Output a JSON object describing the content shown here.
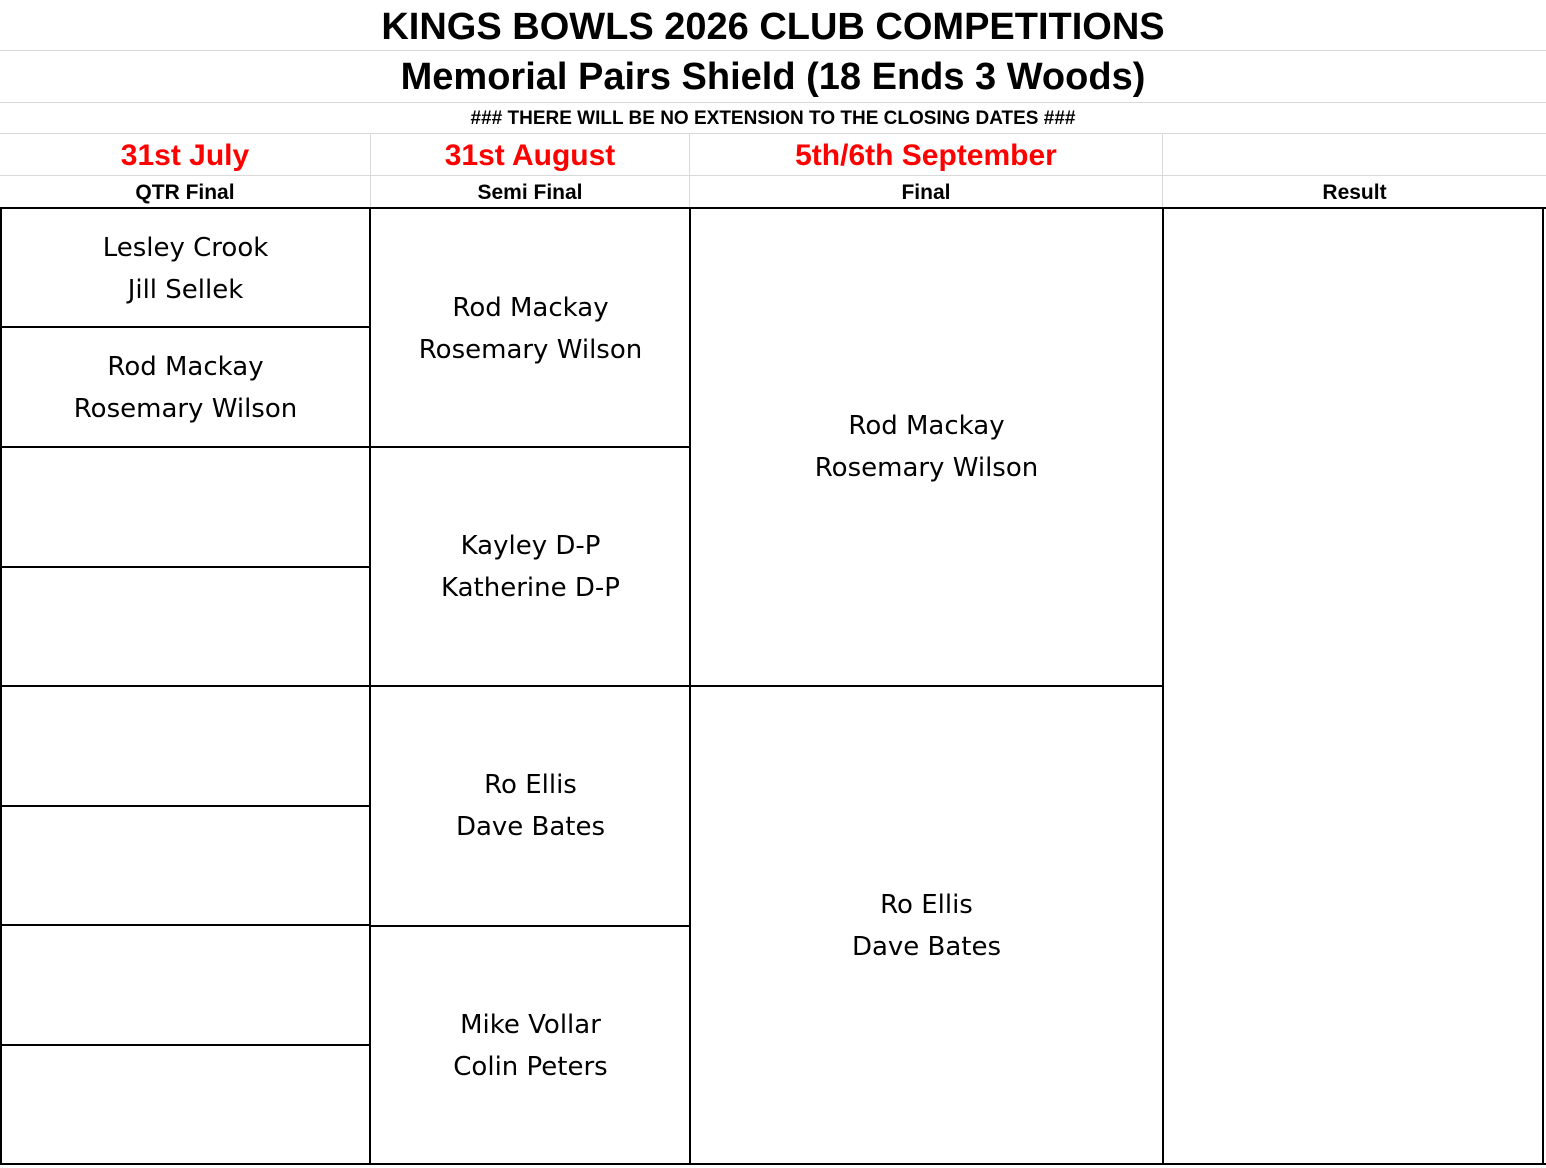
{
  "header": {
    "title": "KINGS BOWLS 2026 CLUB COMPETITIONS",
    "subtitle": "Memorial Pairs Shield (18 Ends 3 Woods)",
    "notice": "###  THERE WILL BE NO EXTENSION TO THE CLOSING DATES  ###"
  },
  "columns": [
    {
      "date": "31st July",
      "round": "QTR Final"
    },
    {
      "date": "31st August",
      "round": "Semi Final"
    },
    {
      "date": "5th/6th September",
      "round": "Final"
    },
    {
      "date": "",
      "round": "Result"
    }
  ],
  "quarter_final": [
    {
      "player1": "Lesley Crook",
      "player2": "Jill Sellek"
    },
    {
      "player1": "Rod Mackay",
      "player2": "Rosemary Wilson"
    },
    {
      "player1": "",
      "player2": ""
    },
    {
      "player1": "",
      "player2": ""
    },
    {
      "player1": "",
      "player2": ""
    },
    {
      "player1": "",
      "player2": ""
    },
    {
      "player1": "",
      "player2": ""
    },
    {
      "player1": "",
      "player2": ""
    }
  ],
  "semi_final": [
    {
      "player1": "Rod Mackay",
      "player2": "Rosemary Wilson"
    },
    {
      "player1": "Kayley D-P",
      "player2": "Katherine D-P"
    },
    {
      "player1": "Ro Ellis",
      "player2": "Dave Bates"
    },
    {
      "player1": "Mike Vollar",
      "player2": "Colin Peters"
    }
  ],
  "final": [
    {
      "player1": "Rod Mackay",
      "player2": "Rosemary Wilson"
    },
    {
      "player1": "Ro Ellis",
      "player2": "Dave Bates"
    }
  ],
  "result": {
    "player1": "",
    "player2": ""
  }
}
